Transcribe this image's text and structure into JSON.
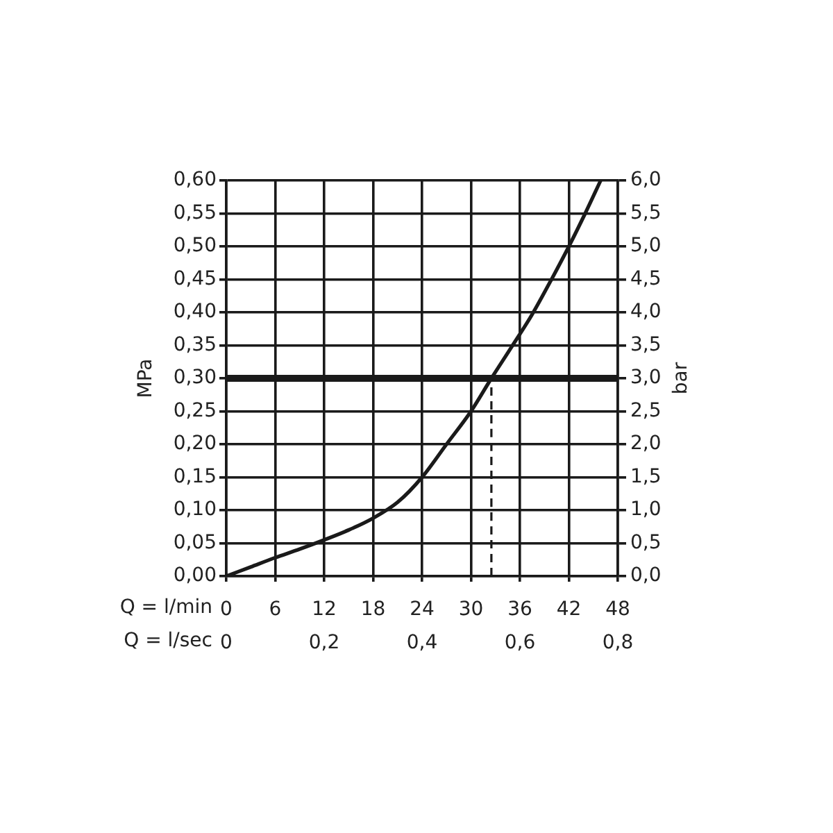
{
  "chart_data": {
    "type": "line",
    "xlabel": "Q = l/min",
    "x2label": "Q = l/sec",
    "ylabel": "MPa",
    "y2label": "bar",
    "xlim": [
      0,
      48
    ],
    "xticks": [
      0,
      6,
      12,
      18,
      24,
      30,
      36,
      42,
      48
    ],
    "x2lim": [
      0,
      0.8
    ],
    "x2ticks": [
      0,
      {
        "value": 0.2,
        "label": "0,2"
      },
      {
        "value": 0.4,
        "label": "0,4"
      },
      {
        "value": 0.6,
        "label": "0,6"
      },
      {
        "value": 0.8,
        "label": "0,8"
      }
    ],
    "ylim": [
      0,
      0.6
    ],
    "yticks": [
      {
        "value": 0,
        "label": "0,00"
      },
      {
        "value": 0.05,
        "label": "0,05"
      },
      {
        "value": 0.1,
        "label": "0,10"
      },
      {
        "value": 0.15,
        "label": "0,15"
      },
      {
        "value": 0.2,
        "label": "0,20"
      },
      {
        "value": 0.25,
        "label": "0,25"
      },
      {
        "value": 0.3,
        "label": "0,30"
      },
      {
        "value": 0.35,
        "label": "0,35"
      },
      {
        "value": 0.4,
        "label": "0,40"
      },
      {
        "value": 0.45,
        "label": "0,45"
      },
      {
        "value": 0.5,
        "label": "0,50"
      },
      {
        "value": 0.55,
        "label": "0,55"
      },
      {
        "value": 0.6,
        "label": "0,60"
      }
    ],
    "y2lim": [
      0,
      6
    ],
    "y2ticks": [
      {
        "value": 0,
        "label": "0,0"
      },
      {
        "value": 0.5,
        "label": "0,5"
      },
      {
        "value": 1,
        "label": "1,0"
      },
      {
        "value": 1.5,
        "label": "1,5"
      },
      {
        "value": 2,
        "label": "2,0"
      },
      {
        "value": 2.5,
        "label": "2,5"
      },
      {
        "value": 3,
        "label": "3,0"
      },
      {
        "value": 3.5,
        "label": "3,5"
      },
      {
        "value": 4,
        "label": "4,0"
      },
      {
        "value": 4.5,
        "label": "4,5"
      },
      {
        "value": 5,
        "label": "5,0"
      },
      {
        "value": 5.5,
        "label": "5,5"
      },
      {
        "value": 6,
        "label": "6,0"
      }
    ],
    "series": [
      {
        "color": "#1a1a1a",
        "x": [
          0,
          3,
          6,
          9,
          12,
          15,
          18,
          21,
          24,
          27,
          30,
          32.5,
          35,
          37.5,
          40,
          42,
          44,
          45.9
        ],
        "values": [
          0,
          0.014,
          0.028,
          0.041,
          0.055,
          0.07,
          0.088,
          0.112,
          0.15,
          0.2,
          0.25,
          0.3,
          0.348,
          0.397,
          0.453,
          0.5,
          0.55,
          0.6
        ]
      },
      {
        "color": "#1a1a1a",
        "x": [
          32.5,
          32.5
        ],
        "values": [
          0,
          0.3
        ],
        "line_style": "dashed"
      }
    ],
    "ref_lines": [
      {
        "axis": "y",
        "value": 0.3,
        "color": "#1a1a1a"
      }
    ],
    "grid": true,
    "legend": false,
    "marker": "none"
  }
}
